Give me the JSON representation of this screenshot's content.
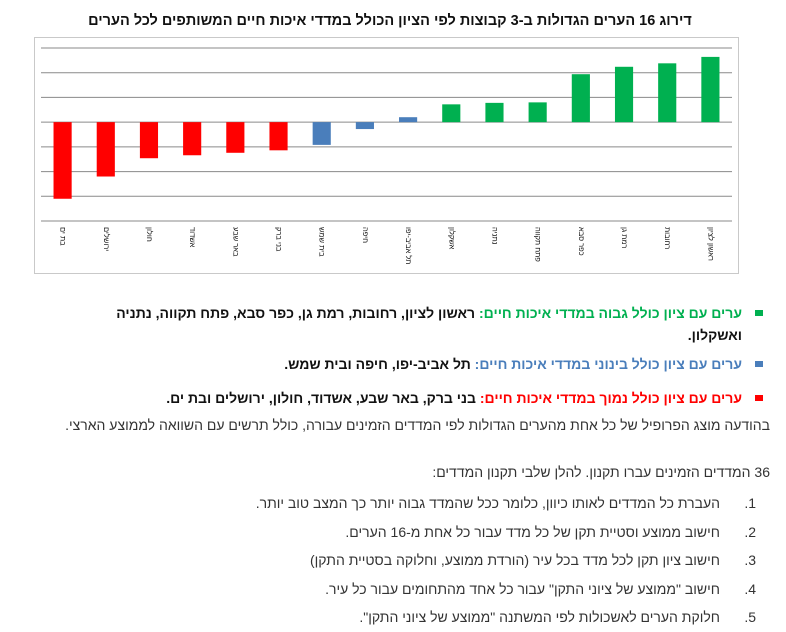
{
  "chart_data": {
    "type": "bar",
    "title": "דירוג 16 הערים הגדולות ב-3 קבוצות לפי הציון הכולל במדדי איכות חיים המשותפים לכל הערים",
    "categories": [
      "בת ים",
      "ירושלים",
      "חולון",
      "אשדוד",
      "באר שבע",
      "בני ברק",
      "בית שמש",
      "חיפה",
      "תל אביב-יפו",
      "אשקלון",
      "נתניה",
      "פתח תקווה",
      "כפר סבא",
      "רמת גן",
      "רחובות",
      "ראשון לציון"
    ],
    "values": [
      -1.55,
      -1.1,
      -0.73,
      -0.67,
      -0.62,
      -0.57,
      -0.46,
      -0.14,
      0.1,
      0.36,
      0.39,
      0.4,
      0.97,
      1.12,
      1.19,
      1.32
    ],
    "groups": [
      "low",
      "low",
      "low",
      "low",
      "low",
      "low",
      "mid",
      "mid",
      "mid",
      "high",
      "high",
      "high",
      "high",
      "high",
      "high",
      "high"
    ],
    "ylim": [
      -2,
      1.5
    ],
    "ytick_step": 0.5,
    "grid": true,
    "colors": {
      "high": "#00b050",
      "mid": "#4a7ebb",
      "low": "#ff0000"
    }
  },
  "groups_text": [
    {
      "key": "high",
      "color": "#00b050",
      "label": "ערים עם ציון כולל גבוה במדדי איכות חיים:",
      "cities": "ראשון לציון, רחובות, רמת גן, כפר סבא, פתח תקווה, נתניה ואשקלון."
    },
    {
      "key": "mid",
      "color": "#4a7ebb",
      "label": "ערים עם ציון כולל בינוני במדדי איכות חיים:",
      "cities": "תל אביב-יפו, חיפה ובית שמש."
    },
    {
      "key": "low",
      "color": "#ff0000",
      "label": "ערים עם ציון כולל נמוך במדדי איכות חיים:",
      "cities": "בני ברק, באר שבע, אשדוד, חולון, ירושלים ובת ים."
    }
  ],
  "paragraph": "בהודעה מוצג הפרופיל של כל אחת מהערים הגדולות לפי המדדים הזמינים עבורה, כולל תרשים עם השוואה לממוצע הארצי.",
  "intro": "36 המדדים הזמינים עברו תקנון. להלן שלבי תקנון המדדים:",
  "steps": [
    {
      "num": "1.",
      "text": "העברת כל המדדים לאותו כיוון, כלומר ככל שהמדד גבוה יותר כך המצב טוב יותר."
    },
    {
      "num": "2.",
      "text": "חישוב ממוצע וסטיית תקן של כל מדד עבור כל אחת מ-16 הערים."
    },
    {
      "num": "3.",
      "text": "חישוב ציון תקן לכל מדד בכל עיר (הורדת ממוצע, וחלוקה בסטיית התקן)"
    },
    {
      "num": "4.",
      "text": "חישוב \"ממוצע של ציוני התקן\" עבור כל אחד מהתחומים עבור כל עיר."
    },
    {
      "num": "5.",
      "text": "חלוקת הערים לאשכולות לפי המשתנה \"ממוצע של ציוני התקן\"."
    }
  ]
}
